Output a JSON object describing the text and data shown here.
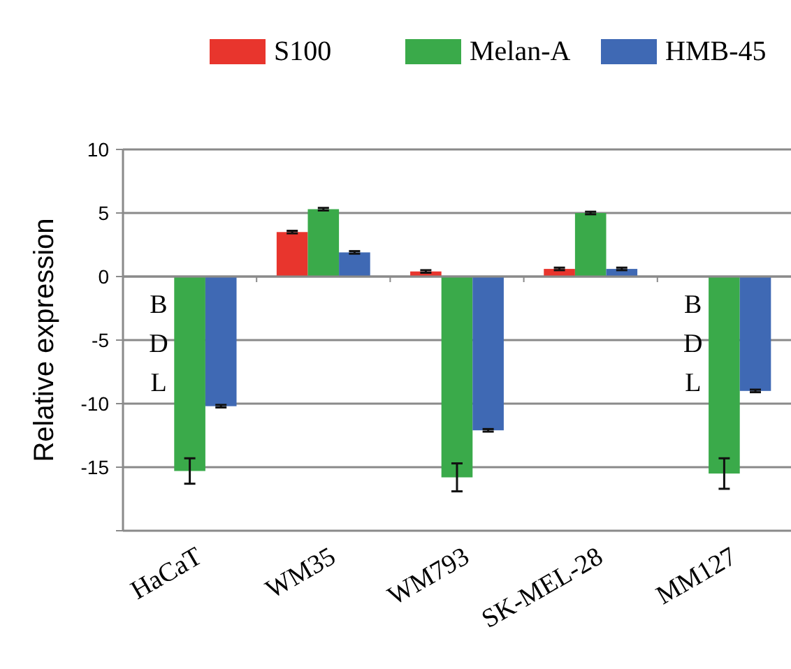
{
  "chart_data": {
    "type": "bar",
    "ylabel": "Relative expression",
    "categories": [
      "HaCaT",
      "WM35",
      "WM793",
      "SK-MEL-28",
      "MM127"
    ],
    "series": [
      {
        "name": "S100",
        "color": "#e8352d",
        "values": [
          null,
          3.5,
          0.4,
          0.6,
          null
        ],
        "errors": [
          null,
          0.1,
          0.1,
          0.1,
          null
        ]
      },
      {
        "name": "Melan-A",
        "color": "#3aaa4a",
        "values": [
          -15.3,
          5.3,
          -15.8,
          5.0,
          -15.5
        ],
        "errors": [
          1,
          0.1,
          1.1,
          0.1,
          1.2
        ]
      },
      {
        "name": "HMB-45",
        "color": "#3f69b4",
        "values": [
          -10.2,
          1.9,
          -12.1,
          0.6,
          -9.0
        ],
        "errors": [
          0.1,
          0.1,
          0.1,
          0.1,
          0.1
        ]
      }
    ],
    "ylim": [
      -20,
      10
    ],
    "yticks": [
      10,
      5,
      0,
      -5,
      -10,
      -15,
      {
        "value": -20,
        "label": null
      }
    ],
    "grid": "y",
    "legend": "top",
    "annotations": [
      {
        "text": "BDL",
        "x": "HaCaT"
      },
      {
        "text": "BDL",
        "x": "MM127"
      }
    ]
  }
}
